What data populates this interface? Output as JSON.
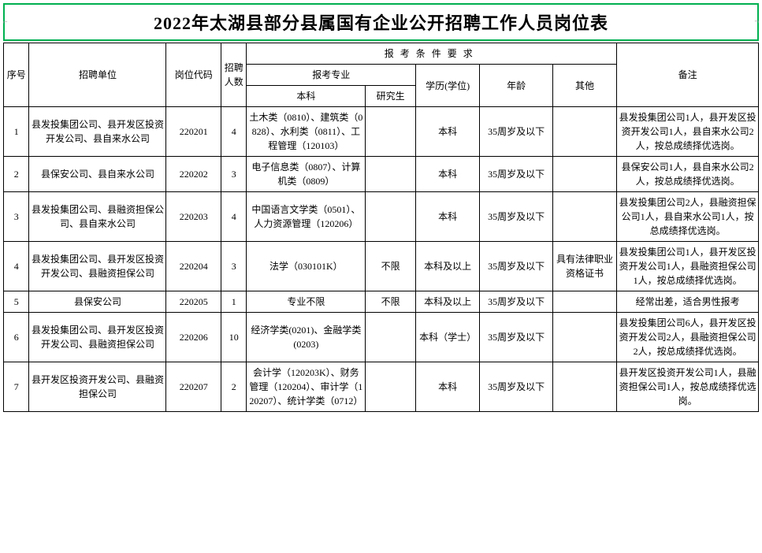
{
  "title": "2022年太湖县部分县属国有企业公开招聘工作人员岗位表",
  "headers": {
    "seq": "序号",
    "unit": "招聘单位",
    "code": "岗位代码",
    "count": "招聘人数",
    "requirements": "报考条件要求",
    "major": "报考专业",
    "undergrad": "本科",
    "grad": "研究生",
    "edu": "学历(学位)",
    "age": "年龄",
    "other": "其他",
    "note": "备注"
  },
  "styling": {
    "title_border_color": "#00b050",
    "title_fontsize": 22,
    "cell_fontsize": 12,
    "border_color": "#000000",
    "background_color": "#ffffff",
    "font_family": "SimSun"
  },
  "rows": [
    {
      "seq": "1",
      "unit": "县发投集团公司、县开发区投资开发公司、县自来水公司",
      "code": "220201",
      "count": "4",
      "undergrad": "土木类（0810）、建筑类（0828）、水利类（0811）、工程管理（120103）",
      "grad": "",
      "edu": "本科",
      "age": "35周岁及以下",
      "other": "",
      "note": "县发投集团公司1人，县开发区投资开发公司1人，县自来水公司2人，按总成绩择优选岗。"
    },
    {
      "seq": "2",
      "unit": "县保安公司、县自来水公司",
      "code": "220202",
      "count": "3",
      "undergrad": "电子信息类（0807）、计算机类（0809）",
      "grad": "",
      "edu": "本科",
      "age": "35周岁及以下",
      "other": "",
      "note": "县保安公司1人，县自来水公司2人，按总成绩择优选岗。"
    },
    {
      "seq": "3",
      "unit": "县发投集团公司、县融资担保公司、县自来水公司",
      "code": "220203",
      "count": "4",
      "undergrad": "中国语言文学类（0501）、人力资源管理（120206）",
      "grad": "",
      "edu": "本科",
      "age": "35周岁及以下",
      "other": "",
      "note": "县发投集团公司2人，县融资担保公司1人，县自来水公司1人，按总成绩择优选岗。"
    },
    {
      "seq": "4",
      "unit": "县发投集团公司、县开发区投资开发公司、县融资担保公司",
      "code": "220204",
      "count": "3",
      "undergrad": "法学（030101K）",
      "grad": "不限",
      "edu": "本科及以上",
      "age": "35周岁及以下",
      "other": "具有法律职业资格证书",
      "note": "县发投集团公司1人，县开发区投资开发公司1人，县融资担保公司1人，按总成绩择优选岗。"
    },
    {
      "seq": "5",
      "unit": "县保安公司",
      "code": "220205",
      "count": "1",
      "undergrad": "专业不限",
      "grad": "不限",
      "edu": "本科及以上",
      "age": "35周岁及以下",
      "other": "",
      "note": "经常出差，适合男性报考"
    },
    {
      "seq": "6",
      "unit": "县发投集团公司、县开发区投资开发公司、县融资担保公司",
      "code": "220206",
      "count": "10",
      "undergrad": "经济学类(0201)、金融学类(0203)",
      "grad": "",
      "edu": "本科（学士）",
      "age": "35周岁及以下",
      "other": "",
      "note": "县发投集团公司6人，县开发区投资开发公司2人，县融资担保公司2人，按总成绩择优选岗。"
    },
    {
      "seq": "7",
      "unit": "县开发区投资开发公司、县融资担保公司",
      "code": "220207",
      "count": "2",
      "undergrad": "会计学（120203K）、财务管理（120204）、审计学（120207）、统计学类（0712）",
      "grad": "",
      "edu": "本科",
      "age": "35周岁及以下",
      "other": "",
      "note": "县开发区投资开发公司1人，县融资担保公司1人，按总成绩择优选岗。"
    }
  ]
}
